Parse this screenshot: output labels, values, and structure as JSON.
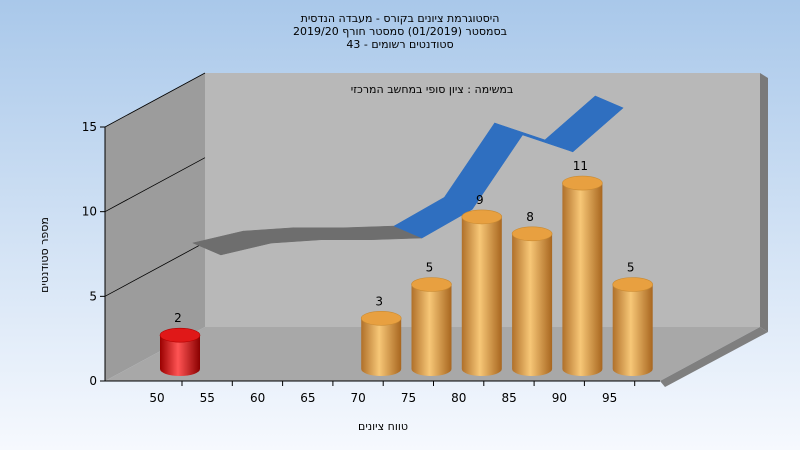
{
  "chart_data": {
    "type": "bar",
    "title_lines": [
      "היסטוגרמת ציונים בקורס - מעבדה הנדסית",
      "בסמסטר  (01/2019)  סמסטר חורף 2019/20",
      "סטודנטים רשומים - 43"
    ],
    "subtitle": "במשימה : ציון סופי במחשב המרכזי",
    "xlabel": "טווח ציונים",
    "ylabel": "מספר סטודנטים",
    "x_ticks": [
      "50",
      "55",
      "60",
      "65",
      "70",
      "75",
      "80",
      "85",
      "90",
      "95"
    ],
    "y_ticks": [
      "0",
      "5",
      "10",
      "15"
    ],
    "ylim": [
      0,
      15
    ],
    "grid": false,
    "series": [
      {
        "kind": "bar",
        "categories": [
          "50",
          "70",
          "75",
          "80",
          "85",
          "90",
          "95"
        ],
        "values": [
          2,
          3,
          5,
          9,
          8,
          11,
          5
        ],
        "labels": [
          "2",
          "3",
          "5",
          "9",
          "8",
          "11",
          "5"
        ],
        "colors": [
          "#e01818",
          "#e8a040",
          "#e8a040",
          "#e8a040",
          "#e8a040",
          "#e8a040",
          "#e8a040"
        ]
      },
      {
        "kind": "ribbon",
        "x": [
          "55",
          "60",
          "65",
          "70",
          "75",
          "80",
          "85",
          "90",
          "95"
        ],
        "values": [
          4.5,
          5.2,
          5.4,
          5.4,
          5.5,
          7.2,
          11.6,
          10.6,
          13.2
        ],
        "colors": {
          "low": "#6e6e6e",
          "high": "#2f6fc0"
        }
      }
    ],
    "colors": {
      "background_top": "#a9c8ea",
      "background_bottom": "#f6f9fe",
      "back_wall": "#b8b8b8",
      "left_wall": "#9c9c9c",
      "floor": "#a8a8a8"
    }
  }
}
